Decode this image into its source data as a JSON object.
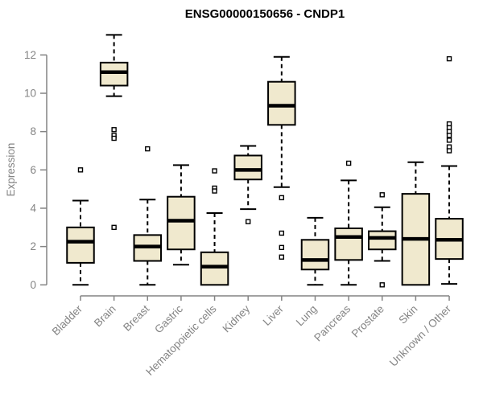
{
  "page": {
    "title": "ENSG00000150656 - CNDP1"
  },
  "chart_data": {
    "type": "boxplot",
    "title": "ENSG00000150656 - CNDP1",
    "ylabel": "Expression",
    "xlabel": "",
    "ylim": [
      0,
      13.3
    ],
    "yticks": [
      0,
      2,
      4,
      6,
      8,
      10,
      12
    ],
    "grid": false,
    "legend": "none",
    "categories": [
      "Bladder",
      "Brain",
      "Breast",
      "Gastric",
      "Hematopoietic cells",
      "Kidney",
      "Liver",
      "Lung",
      "Pancreas",
      "Prostate",
      "Skin",
      "Unknown / Other"
    ],
    "series": [
      {
        "category": "Bladder",
        "low": 0.0,
        "q1": 1.15,
        "median": 2.25,
        "q3": 3.0,
        "high": 4.4,
        "outliers": [
          6.0
        ]
      },
      {
        "category": "Brain",
        "low": 9.85,
        "q1": 10.4,
        "median": 11.1,
        "q3": 11.6,
        "high": 13.05,
        "outliers": [
          8.1,
          7.8,
          7.65,
          3.0
        ]
      },
      {
        "category": "Breast",
        "low": 0.0,
        "q1": 1.25,
        "median": 2.0,
        "q3": 2.6,
        "high": 4.45,
        "outliers": [
          7.1
        ]
      },
      {
        "category": "Gastric",
        "low": 1.05,
        "q1": 1.85,
        "median": 3.35,
        "q3": 4.6,
        "high": 6.25,
        "outliers": []
      },
      {
        "category": "Hematopoietic cells",
        "low": 0.0,
        "q1": 0.0,
        "median": 0.95,
        "q3": 1.7,
        "high": 3.75,
        "outliers": [
          5.95,
          5.05,
          4.9
        ]
      },
      {
        "category": "Kidney",
        "low": 3.95,
        "q1": 5.5,
        "median": 6.0,
        "q3": 6.75,
        "high": 7.25,
        "outliers": [
          3.3
        ]
      },
      {
        "category": "Liver",
        "low": 5.1,
        "q1": 8.35,
        "median": 9.35,
        "q3": 10.6,
        "high": 11.9,
        "outliers": [
          4.55,
          2.7,
          1.95,
          1.45
        ]
      },
      {
        "category": "Lung",
        "low": 0.0,
        "q1": 0.8,
        "median": 1.3,
        "q3": 2.35,
        "high": 3.5,
        "outliers": []
      },
      {
        "category": "Pancreas",
        "low": 0.0,
        "q1": 1.3,
        "median": 2.5,
        "q3": 2.95,
        "high": 5.45,
        "outliers": [
          6.35
        ]
      },
      {
        "category": "Prostate",
        "low": 1.25,
        "q1": 1.85,
        "median": 2.45,
        "q3": 2.8,
        "high": 4.05,
        "outliers": [
          4.7,
          0.0
        ]
      },
      {
        "category": "Skin",
        "low": 0.0,
        "q1": 0.0,
        "median": 2.4,
        "q3": 4.75,
        "high": 6.4,
        "outliers": []
      },
      {
        "category": "Unknown / Other",
        "low": 0.05,
        "q1": 1.35,
        "median": 2.35,
        "q3": 3.45,
        "high": 6.2,
        "outliers": [
          11.8,
          8.4,
          8.2,
          8.0,
          7.8,
          7.55,
          7.2,
          7.0
        ]
      }
    ],
    "colors": {
      "box_fill": "#F0E9CE",
      "box_stroke": "#000000",
      "median": "#000000",
      "whisker": "#000000",
      "outlier_fill": "#FFFFFF",
      "outlier_stroke": "#000000",
      "axis": "#848484",
      "labels": "#848484",
      "title": "#000000",
      "background": "#FFFFFF"
    }
  }
}
